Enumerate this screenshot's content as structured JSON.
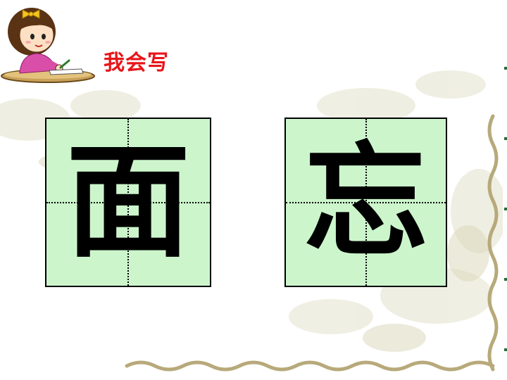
{
  "slide": {
    "heading": "我会写",
    "characters": [
      "面",
      "忘"
    ]
  },
  "colors": {
    "heading": "#e8151a",
    "grid_fill": "#ccf5cc",
    "grid_border": "#000000"
  }
}
